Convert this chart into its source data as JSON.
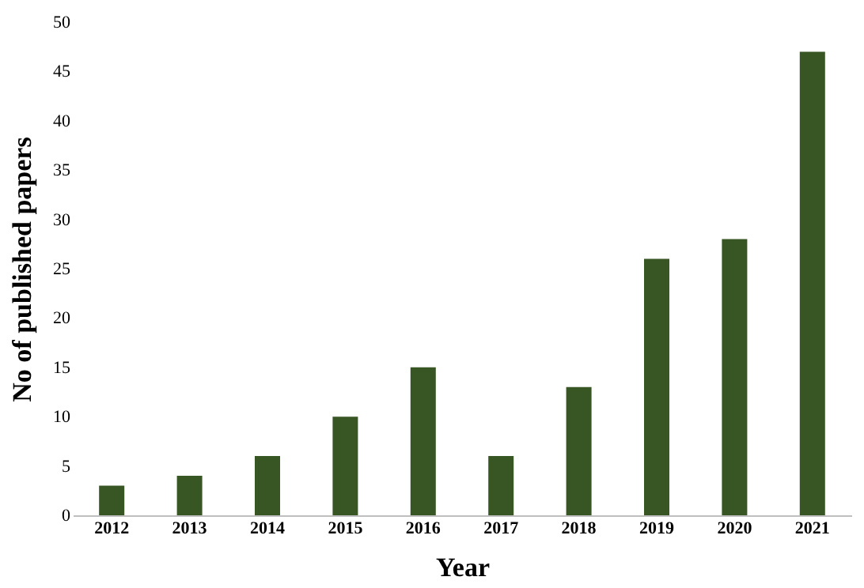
{
  "chart_data": {
    "type": "bar",
    "xlabel": "Year",
    "ylabel": "No of published papers",
    "categories": [
      "2012",
      "2013",
      "2014",
      "2015",
      "2016",
      "2017",
      "2018",
      "2019",
      "2020",
      "2021"
    ],
    "values": [
      3,
      4,
      6,
      10,
      15,
      6,
      13,
      26,
      28,
      47
    ],
    "color": "#375623",
    "ylim": [
      0,
      50
    ],
    "yticks": [
      0,
      5,
      10,
      15,
      20,
      25,
      30,
      35,
      40,
      45,
      50
    ],
    "grid": false
  }
}
